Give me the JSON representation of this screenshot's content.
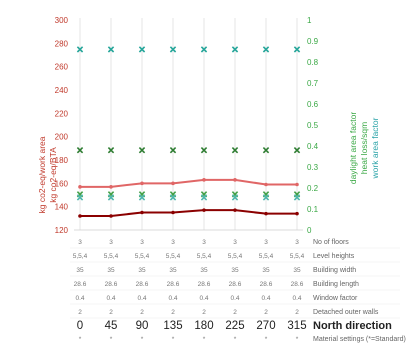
{
  "chart_data": {
    "type": "line",
    "x": [
      0,
      45,
      90,
      135,
      180,
      225,
      270,
      315
    ],
    "left_axis": {
      "labels": [
        "kg co2-eq/work area",
        "kg co2-eq/BTA"
      ],
      "ylim": [
        120,
        300
      ],
      "ticks": [
        120,
        140,
        160,
        180,
        200,
        220,
        240,
        260,
        280,
        300
      ],
      "color": "#c0392b"
    },
    "right_axis": {
      "labels": [
        "daylight area factor",
        "heat loss/sqm",
        "work area factor"
      ],
      "label_colors": [
        "#3aa845",
        "#3aa845",
        "#2aa3a8"
      ],
      "ylim": [
        0,
        1
      ],
      "ticks": [
        "0",
        "0.1",
        "0.2",
        "0.3",
        "0.4",
        "0.5",
        "0.6",
        "0.7",
        "0.8",
        "0.9",
        "1"
      ],
      "color": "#3aa845"
    },
    "series": [
      {
        "axis": "left",
        "kind": "line",
        "color": "#e06666",
        "values": [
          157,
          157,
          160,
          160,
          163,
          163,
          159,
          159
        ]
      },
      {
        "axis": "left",
        "kind": "line",
        "color": "#8b0000",
        "values": [
          132,
          132,
          135,
          135,
          137,
          137,
          134,
          134
        ]
      },
      {
        "axis": "right",
        "kind": "markers",
        "marker": "x",
        "color": "#2e7d32",
        "values": [
          0.38,
          0.38,
          0.38,
          0.38,
          0.38,
          0.38,
          0.38,
          0.38
        ]
      },
      {
        "axis": "right",
        "kind": "markers",
        "marker": "x",
        "color": "#43a047",
        "values": [
          0.17,
          0.17,
          0.17,
          0.17,
          0.17,
          0.17,
          0.17,
          0.17
        ]
      },
      {
        "axis": "right",
        "kind": "markers",
        "marker": "x",
        "color": "#26a69a",
        "values": [
          0.86,
          0.86,
          0.86,
          0.86,
          0.86,
          0.86,
          0.86,
          0.86
        ]
      },
      {
        "axis": "right",
        "kind": "markers",
        "marker": "x",
        "color": "#4db6ac",
        "values": [
          0.155,
          0.155,
          0.155,
          0.155,
          0.155,
          0.155,
          0.155,
          0.155
        ]
      }
    ],
    "grid": "vertical",
    "table": {
      "rows": [
        {
          "label": "No of floors",
          "values": [
            "3",
            "3",
            "3",
            "3",
            "3",
            "3",
            "3",
            "3"
          ]
        },
        {
          "label": "Level heights",
          "values": [
            "5,5,4",
            "5,5,4",
            "5,5,4",
            "5,5,4",
            "5,5,4",
            "5,5,4",
            "5,5,4",
            "5,5,4"
          ]
        },
        {
          "label": "Building width",
          "values": [
            "35",
            "35",
            "35",
            "35",
            "35",
            "35",
            "35",
            "35"
          ]
        },
        {
          "label": "Building length",
          "values": [
            "28.6",
            "28.6",
            "28.6",
            "28.6",
            "28.6",
            "28.6",
            "28.6",
            "28.6"
          ]
        },
        {
          "label": "Window factor",
          "values": [
            "0.4",
            "0.4",
            "0.4",
            "0.4",
            "0.4",
            "0.4",
            "0.4",
            "0.4"
          ]
        },
        {
          "label": "Detached outer walls",
          "values": [
            "2",
            "2",
            "2",
            "2",
            "2",
            "2",
            "2",
            "2"
          ]
        },
        {
          "label": "North direction",
          "big": true,
          "values": [
            "0",
            "45",
            "90",
            "135",
            "180",
            "225",
            "270",
            "315"
          ]
        },
        {
          "label": "Material settings (*=Standard)",
          "values": [
            "*",
            "*",
            "*",
            "*",
            "*",
            "*",
            "*",
            "*"
          ]
        }
      ]
    }
  }
}
